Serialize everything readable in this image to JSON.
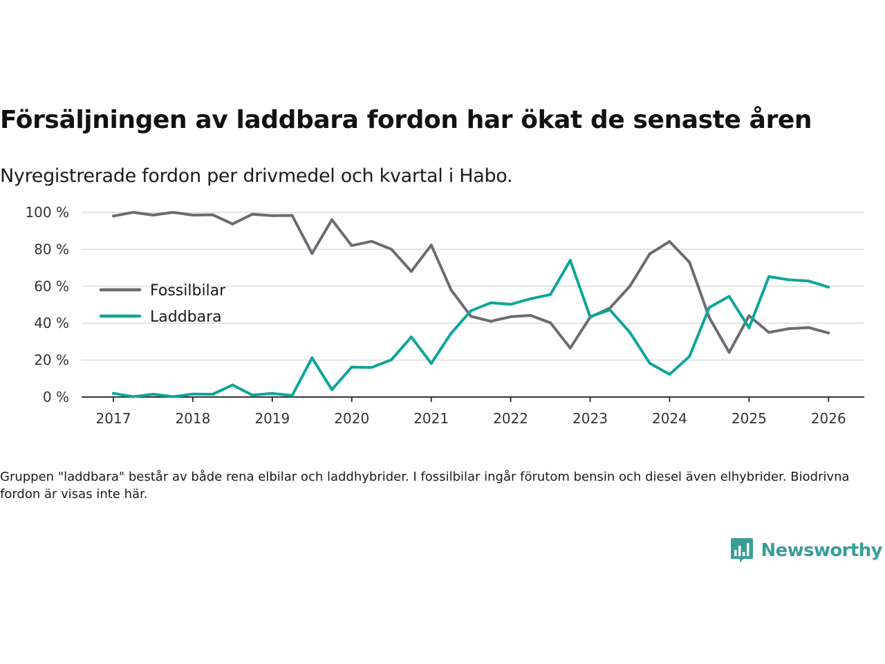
{
  "title": "Försäljningen av laddbara fordon har ökat de senaste åren",
  "subtitle": "Nyregistrerade fordon per drivmedel och kvartal i Habo.",
  "note": "Gruppen \"laddbara\" består av både rena elbilar och laddhybrider. I fossilbilar ingår förutom bensin och diesel även elhybrider. Biodrivna fordon är visas inte här.",
  "brand": {
    "name": "Newsworthy",
    "icon": "newsworthy-logo-icon",
    "color": "#3a9e97"
  },
  "chart_data": {
    "type": "line",
    "title": "Försäljningen av laddbara fordon har ökat de senaste åren",
    "subtitle": "Nyregistrerade fordon per drivmedel och kvartal i Habo.",
    "xlabel": "",
    "ylabel": "",
    "x_start": 2017.0,
    "x_step": 0.25,
    "xlim": [
      2016.6,
      2026.45
    ],
    "ylim": [
      0,
      100
    ],
    "grid": true,
    "legend_position": "left",
    "xticks": [
      2017,
      2018,
      2019,
      2020,
      2021,
      2022,
      2023,
      2024,
      2025,
      2026
    ],
    "xtick_labels": [
      "2017",
      "2018",
      "2019",
      "2020",
      "2021",
      "2022",
      "2023",
      "2024",
      "2025",
      "2026"
    ],
    "yticks": [
      0,
      20,
      40,
      60,
      80,
      100
    ],
    "ytick_labels": [
      "0 %",
      "20 %",
      "40 %",
      "60 %",
      "80 %",
      "100 %"
    ],
    "series": [
      {
        "name": "Fossilbilar",
        "color": "#6c6b72",
        "values": [
          98,
          100,
          98.5,
          100,
          98.5,
          98.7,
          93.7,
          99,
          98.2,
          98.3,
          77.7,
          96,
          82,
          84.3,
          80,
          68,
          82.3,
          58,
          43.7,
          41,
          43.5,
          44.2,
          40.2,
          26.5,
          43.2,
          48.2,
          60,
          77.5,
          84.2,
          73,
          43,
          24.2,
          44,
          35,
          37,
          37.6,
          34.7
        ]
      },
      {
        "name": "Laddbara",
        "color": "#0ea59a",
        "values": [
          2,
          0.2,
          1.5,
          0.2,
          1.6,
          1.5,
          6.5,
          1,
          2,
          0.8,
          21.2,
          4,
          16.2,
          16,
          20.2,
          32.5,
          18.2,
          34.5,
          46.7,
          51,
          50.2,
          53.2,
          55.5,
          74,
          43.5,
          47.2,
          35,
          18.3,
          12.3,
          22,
          48.5,
          54.5,
          37.5,
          65.2,
          63.5,
          62.8,
          59.5
        ]
      }
    ]
  }
}
